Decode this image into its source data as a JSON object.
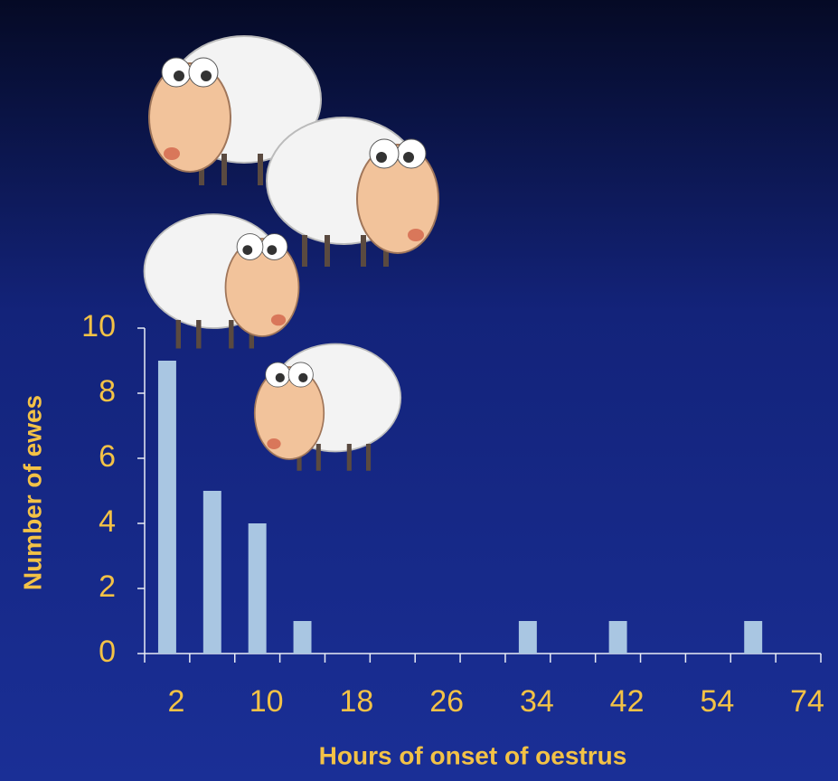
{
  "chart_data": {
    "type": "bar",
    "x_label": "Hours of onset of oestrus",
    "y_label": "Number of ewes",
    "categories": [
      "2",
      null,
      "10",
      null,
      "18",
      null,
      "26",
      null,
      "34",
      null,
      "42",
      null,
      "54",
      null,
      "74"
    ],
    "values": [
      9,
      5,
      4,
      1,
      0,
      0,
      0,
      0,
      1,
      0,
      1,
      0,
      0,
      1,
      0
    ],
    "color": "#a9c6e2",
    "ylim": [
      0,
      10
    ],
    "yticks": [
      0,
      2,
      4,
      6,
      8,
      10
    ]
  }
}
